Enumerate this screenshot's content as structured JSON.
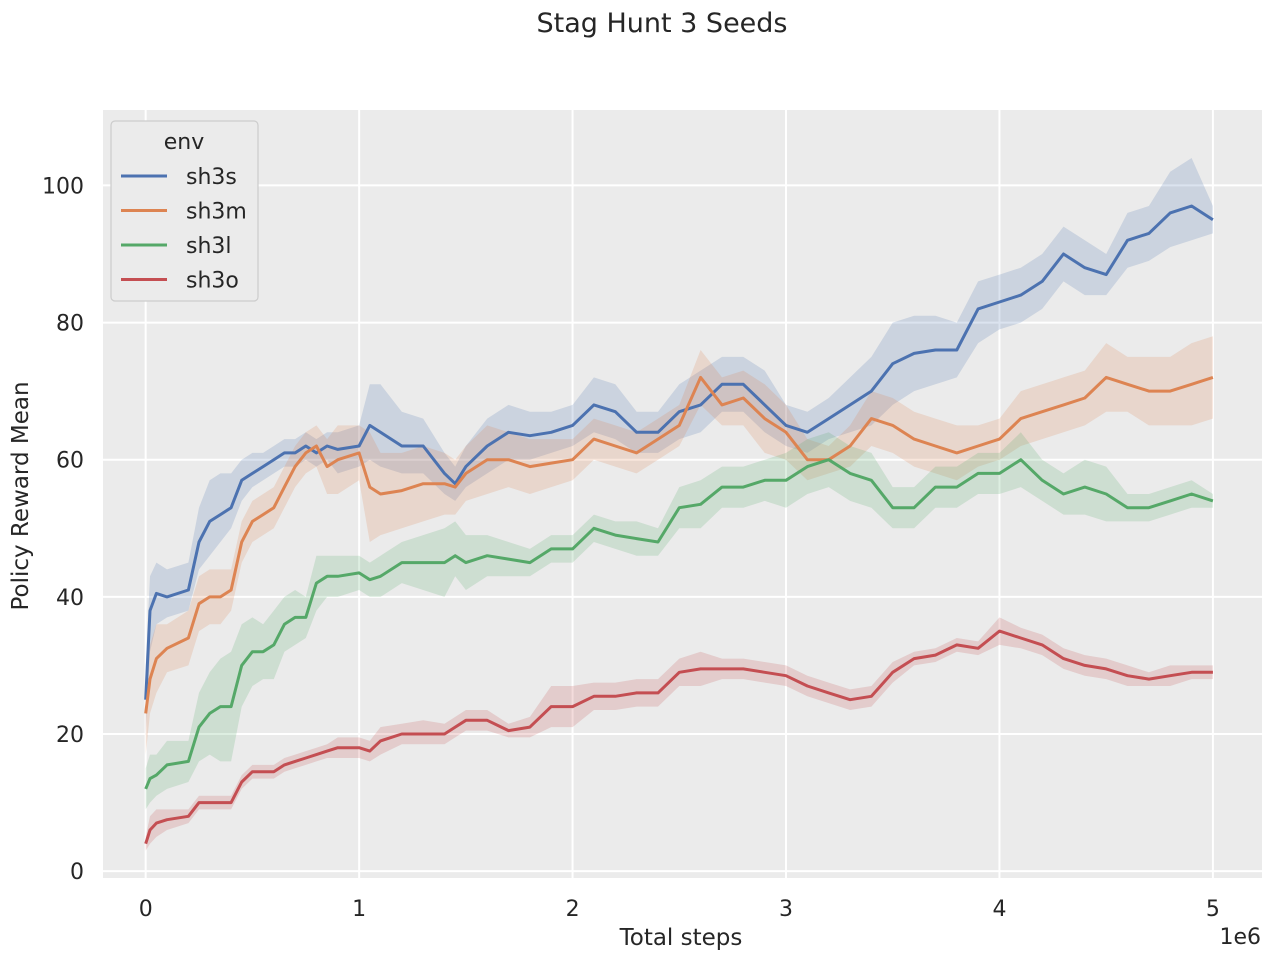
{
  "figure_title": "Stag Hunt 3 Seeds",
  "chart_data": {
    "type": "line",
    "title": "Stag Hunt 3 Seeds",
    "xlabel": "Total steps",
    "ylabel": "Policy Reward Mean",
    "x_scale_label": "1e6",
    "xlim": [
      -0.2,
      5.23
    ],
    "ylim": [
      -1,
      111
    ],
    "xticks": [
      0,
      1,
      2,
      3,
      4,
      5
    ],
    "xtick_labels": [
      "0",
      "1",
      "2",
      "3",
      "4",
      "5"
    ],
    "yticks": [
      0,
      20,
      40,
      60,
      80,
      100
    ],
    "ytick_labels": [
      "0",
      "20",
      "40",
      "60",
      "80",
      "100"
    ],
    "grid": true,
    "legend": {
      "title": "env",
      "placement": "top-left"
    },
    "series": [
      {
        "name": "sh3s",
        "color": "#4c72b0",
        "x": [
          0,
          0.02,
          0.05,
          0.1,
          0.2,
          0.25,
          0.3,
          0.35,
          0.4,
          0.45,
          0.5,
          0.55,
          0.6,
          0.65,
          0.7,
          0.75,
          0.8,
          0.85,
          0.9,
          1.0,
          1.05,
          1.1,
          1.2,
          1.3,
          1.4,
          1.45,
          1.5,
          1.6,
          1.7,
          1.8,
          1.9,
          2.0,
          2.1,
          2.2,
          2.3,
          2.4,
          2.5,
          2.6,
          2.7,
          2.8,
          2.9,
          3.0,
          3.1,
          3.2,
          3.3,
          3.4,
          3.5,
          3.6,
          3.7,
          3.8,
          3.9,
          4.0,
          4.1,
          4.2,
          4.3,
          4.4,
          4.5,
          4.6,
          4.7,
          4.8,
          4.9,
          5.0
        ],
        "mean": [
          25,
          38,
          40.5,
          40,
          41,
          48,
          51,
          52,
          53,
          57,
          58,
          59,
          60,
          61,
          61,
          62,
          61,
          62,
          61.5,
          62,
          65,
          64,
          62,
          62,
          58,
          56.5,
          59,
          62,
          64,
          63.5,
          64,
          65,
          68,
          67,
          64,
          64,
          67,
          68,
          71,
          71,
          68,
          65,
          64,
          66,
          68,
          70,
          74,
          75.5,
          76,
          76,
          82,
          83,
          84,
          86,
          90,
          88,
          87,
          92,
          93,
          96,
          97,
          95
        ],
        "lower": [
          20,
          32,
          36,
          37,
          38,
          44,
          46,
          48,
          50,
          54,
          56,
          57,
          58,
          59,
          59,
          60,
          59,
          60,
          58,
          59,
          60,
          59,
          58,
          58,
          55,
          54,
          56,
          58,
          60,
          60,
          61,
          62,
          64,
          63,
          61,
          61,
          63,
          64,
          67,
          67,
          64,
          62,
          61,
          63,
          64,
          65,
          68,
          70,
          71,
          72,
          77,
          79,
          80,
          82,
          86,
          84,
          84,
          88,
          89,
          91,
          92,
          93
        ],
        "upper": [
          30,
          43,
          45,
          44,
          45,
          53,
          57,
          58,
          58,
          60,
          61,
          61,
          62,
          63,
          63,
          64,
          63,
          64,
          64,
          65,
          71,
          71,
          67,
          66,
          61,
          59,
          62,
          66,
          68,
          67,
          67,
          68,
          72,
          71,
          67,
          67,
          71,
          73,
          75,
          75,
          73,
          68,
          67,
          69,
          72,
          75,
          80,
          81,
          81,
          80,
          86,
          87,
          88,
          90,
          94,
          92,
          90,
          96,
          97,
          102,
          104,
          97
        ]
      },
      {
        "name": "sh3m",
        "color": "#dd8452",
        "x": [
          0,
          0.02,
          0.05,
          0.1,
          0.2,
          0.25,
          0.3,
          0.35,
          0.4,
          0.45,
          0.5,
          0.55,
          0.6,
          0.65,
          0.7,
          0.75,
          0.8,
          0.85,
          0.9,
          1.0,
          1.05,
          1.1,
          1.2,
          1.3,
          1.4,
          1.45,
          1.5,
          1.6,
          1.7,
          1.8,
          1.9,
          2.0,
          2.1,
          2.2,
          2.3,
          2.4,
          2.5,
          2.6,
          2.7,
          2.8,
          2.9,
          3.0,
          3.1,
          3.2,
          3.3,
          3.4,
          3.5,
          3.6,
          3.7,
          3.8,
          3.9,
          4.0,
          4.1,
          4.2,
          4.3,
          4.4,
          4.5,
          4.6,
          4.7,
          4.8,
          4.9,
          5.0
        ],
        "mean": [
          23,
          28,
          31,
          32.5,
          34,
          39,
          40,
          40,
          41,
          48,
          51,
          52,
          53,
          56,
          59,
          61,
          62,
          59,
          60,
          61,
          56,
          55,
          55.5,
          56.5,
          56.5,
          56,
          58,
          60,
          60,
          59,
          59.5,
          60,
          63,
          62,
          61,
          63,
          65,
          72,
          68,
          69,
          66,
          64,
          60,
          60,
          62,
          66,
          65,
          63,
          62,
          61,
          62,
          63,
          66,
          67,
          68,
          69,
          72,
          71,
          70,
          70,
          71,
          72
        ],
        "lower": [
          17,
          23,
          26,
          29,
          30,
          35,
          36,
          36,
          38,
          45,
          48,
          49,
          50,
          53,
          56,
          58,
          59,
          55,
          55,
          57,
          48,
          49,
          50,
          51,
          52,
          52,
          54,
          55,
          56,
          55,
          56,
          57,
          60,
          59,
          58,
          60,
          62,
          68,
          65,
          65,
          61,
          60,
          57,
          58,
          59,
          62,
          61,
          59,
          58,
          57,
          59,
          60,
          62,
          63,
          64,
          65,
          67,
          67,
          65,
          65,
          65,
          66
        ],
        "upper": [
          29,
          33,
          36,
          36,
          38,
          43,
          44,
          44,
          44,
          51,
          54,
          55,
          56,
          59,
          62,
          64,
          65,
          63,
          65,
          65,
          64,
          61,
          61,
          62,
          61,
          60,
          62,
          65,
          64,
          63,
          63,
          63,
          66,
          65,
          64,
          66,
          68,
          76,
          72,
          73,
          71,
          68,
          63,
          62,
          65,
          70,
          69,
          67,
          66,
          65,
          65,
          66,
          70,
          71,
          72,
          73,
          77,
          75,
          75,
          75,
          77,
          78
        ]
      },
      {
        "name": "sh3l",
        "color": "#55a868",
        "x": [
          0,
          0.02,
          0.05,
          0.1,
          0.2,
          0.25,
          0.3,
          0.35,
          0.4,
          0.45,
          0.5,
          0.55,
          0.6,
          0.65,
          0.7,
          0.75,
          0.8,
          0.85,
          0.9,
          1.0,
          1.05,
          1.1,
          1.2,
          1.3,
          1.4,
          1.45,
          1.5,
          1.6,
          1.7,
          1.8,
          1.9,
          2.0,
          2.1,
          2.2,
          2.3,
          2.4,
          2.5,
          2.6,
          2.7,
          2.8,
          2.9,
          3.0,
          3.1,
          3.2,
          3.3,
          3.4,
          3.5,
          3.6,
          3.7,
          3.8,
          3.9,
          4.0,
          4.1,
          4.2,
          4.3,
          4.4,
          4.5,
          4.6,
          4.7,
          4.8,
          4.9,
          5.0
        ],
        "mean": [
          12,
          13.5,
          14,
          15.5,
          16,
          21,
          23,
          24,
          24,
          30,
          32,
          32,
          33,
          36,
          37,
          37,
          42,
          43,
          43,
          43.5,
          42.5,
          43,
          45,
          45,
          45,
          46,
          45,
          46,
          45.5,
          45,
          47,
          47,
          50,
          49,
          48.5,
          48,
          53,
          53.5,
          56,
          56,
          57,
          57,
          59,
          60,
          58,
          57,
          53,
          53,
          56,
          56,
          58,
          58,
          60,
          57,
          55,
          56,
          55,
          53,
          53,
          54,
          55,
          54
        ],
        "lower": [
          9,
          10,
          11,
          12,
          13,
          16,
          17,
          16,
          16,
          24,
          27,
          28,
          28,
          32,
          33,
          34,
          38,
          40,
          40,
          41,
          40,
          40,
          42,
          41,
          40,
          43,
          41,
          43,
          43,
          43,
          45,
          45,
          48,
          47,
          46,
          46,
          50,
          50,
          53,
          53,
          54,
          53,
          55,
          56,
          54,
          53,
          50,
          50,
          53,
          53,
          55,
          55,
          56,
          54,
          52,
          52,
          51,
          51,
          51,
          52,
          53,
          53
        ],
        "upper": [
          15,
          17,
          17,
          19,
          19,
          26,
          29,
          31,
          32,
          36,
          37,
          36,
          38,
          40,
          41,
          40,
          46,
          46,
          46,
          46,
          45,
          46,
          48,
          49,
          50,
          51,
          49,
          49,
          48,
          47,
          49,
          49,
          52,
          51,
          51,
          50,
          56,
          57,
          59,
          59,
          60,
          61,
          63,
          64,
          62,
          61,
          56,
          56,
          59,
          59,
          61,
          61,
          64,
          60,
          58,
          60,
          59,
          55,
          55,
          56,
          57,
          55
        ]
      },
      {
        "name": "sh3o",
        "color": "#c44e52",
        "x": [
          0,
          0.02,
          0.05,
          0.1,
          0.2,
          0.25,
          0.3,
          0.35,
          0.4,
          0.45,
          0.5,
          0.55,
          0.6,
          0.65,
          0.7,
          0.75,
          0.8,
          0.85,
          0.9,
          1.0,
          1.05,
          1.1,
          1.2,
          1.3,
          1.4,
          1.45,
          1.5,
          1.6,
          1.7,
          1.8,
          1.9,
          2.0,
          2.1,
          2.2,
          2.3,
          2.4,
          2.5,
          2.6,
          2.7,
          2.8,
          2.9,
          3.0,
          3.1,
          3.2,
          3.3,
          3.4,
          3.5,
          3.6,
          3.7,
          3.8,
          3.9,
          4.0,
          4.1,
          4.2,
          4.3,
          4.4,
          4.5,
          4.6,
          4.7,
          4.8,
          4.9,
          5.0
        ],
        "mean": [
          4,
          6,
          7,
          7.5,
          8,
          10,
          10,
          10,
          10,
          13,
          14.5,
          14.5,
          14.5,
          15.5,
          16,
          16.5,
          17,
          17.5,
          18,
          18,
          17.5,
          19,
          20,
          20,
          20,
          21,
          22,
          22,
          20.5,
          21,
          24,
          24,
          25.5,
          25.5,
          26,
          26,
          29,
          29.5,
          29.5,
          29.5,
          29,
          28.5,
          27,
          26,
          25,
          25.5,
          29,
          31,
          31.5,
          33,
          32.5,
          35,
          34,
          33,
          31,
          30,
          29.5,
          28.5,
          28,
          28.5,
          29,
          29
        ],
        "lower": [
          3,
          4,
          5,
          6,
          7,
          9,
          9,
          9,
          9,
          12,
          13.5,
          13.5,
          13.5,
          14.5,
          15,
          15.5,
          16,
          16.5,
          16.5,
          16.5,
          16,
          17,
          18.5,
          18.5,
          18.5,
          19.5,
          20.5,
          20.5,
          19.5,
          19.5,
          21,
          21,
          23.5,
          23.5,
          24,
          24,
          27,
          27,
          28,
          28,
          27.5,
          27,
          25.5,
          24.5,
          23.5,
          24,
          27.5,
          30,
          30.5,
          32,
          31.5,
          33,
          32.5,
          31.5,
          29.5,
          28.5,
          28,
          27,
          27,
          27,
          28,
          28
        ],
        "upper": [
          5,
          8,
          9,
          9,
          9,
          11,
          11,
          11,
          11,
          14,
          15.5,
          15.5,
          15.5,
          16.5,
          17,
          17.5,
          18,
          18.5,
          19.5,
          19.5,
          19,
          21,
          21.5,
          22,
          21.5,
          22.5,
          23.5,
          23.5,
          21.5,
          22.5,
          27,
          27,
          27.5,
          27.5,
          28,
          28,
          31,
          32,
          31,
          31,
          30.5,
          30,
          28.5,
          27.5,
          26.5,
          27,
          30.5,
          32,
          32.5,
          34,
          33.5,
          37,
          35.5,
          34.5,
          32.5,
          31.5,
          31,
          30,
          29,
          30,
          30,
          30
        ]
      }
    ]
  }
}
